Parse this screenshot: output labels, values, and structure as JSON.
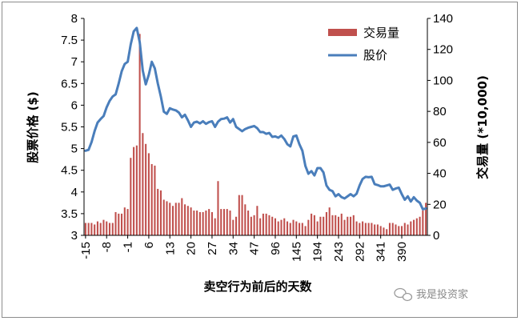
{
  "chart_data": {
    "type": "bar+line",
    "xlabel": "卖空行为前后的天数",
    "ylabel_left": "股票价格 ($)",
    "ylabel_right": "交易量 (*10,000)",
    "ylim_left": [
      3,
      8
    ],
    "ylim_right": [
      0,
      140
    ],
    "y_ticks_left": [
      "3",
      "3.5",
      "4",
      "4.5",
      "5",
      "5.5",
      "6",
      "6.5",
      "7",
      "7.5",
      "8"
    ],
    "y_ticks_right": [
      "0",
      "20",
      "40",
      "60",
      "80",
      "100",
      "120",
      "140"
    ],
    "x_ticks": [
      "-15",
      "-8",
      "-1",
      "6",
      "13",
      "20",
      "27",
      "34",
      "47",
      "96",
      "145",
      "194",
      "243",
      "292",
      "341",
      "390"
    ],
    "x_tick_index": [
      0,
      7,
      14,
      21,
      28,
      35,
      42,
      49,
      56,
      63,
      70,
      77,
      84,
      91,
      98,
      105
    ],
    "legend_position": "top-right",
    "series": [
      {
        "name": "交易量",
        "type": "bar",
        "axis": "right",
        "color": "#c0504d",
        "values": [
          8,
          8,
          8,
          7,
          9,
          8,
          10,
          9,
          8,
          8,
          15,
          14,
          14,
          18,
          17,
          50,
          57,
          58,
          130,
          66,
          59,
          53,
          46,
          45,
          30,
          29,
          23,
          22,
          21,
          19,
          21,
          21,
          24,
          20,
          19,
          18,
          16,
          16,
          15,
          15,
          16,
          17,
          15,
          11,
          35,
          17,
          17,
          17,
          16,
          10,
          12,
          26,
          26,
          20,
          16,
          12,
          13,
          19,
          11,
          14,
          14,
          13,
          12,
          11,
          9,
          10,
          11,
          9,
          8,
          10,
          9,
          8,
          8,
          6,
          10,
          14,
          13,
          9,
          12,
          12,
          15,
          18,
          13,
          13,
          12,
          14,
          10,
          12,
          12,
          13,
          9,
          8,
          9,
          8,
          8,
          8,
          7,
          7,
          6,
          5,
          4,
          8,
          8,
          7,
          6,
          6,
          8,
          7,
          9,
          10,
          11,
          12,
          16,
          21
        ]
      },
      {
        "name": "股价",
        "type": "line",
        "axis": "left",
        "color": "#4a7ebb",
        "values": [
          4.95,
          4.97,
          5.15,
          5.4,
          5.6,
          5.68,
          5.75,
          5.95,
          6.1,
          6.2,
          6.25,
          6.5,
          6.78,
          6.95,
          7.0,
          7.4,
          7.7,
          7.78,
          7.45,
          6.8,
          6.48,
          6.7,
          7.0,
          6.85,
          6.5,
          6.2,
          5.85,
          5.8,
          5.93,
          5.9,
          5.88,
          5.83,
          5.72,
          5.78,
          5.65,
          5.5,
          5.6,
          5.62,
          5.58,
          5.63,
          5.57,
          5.61,
          5.63,
          5.5,
          5.62,
          5.68,
          5.69,
          5.72,
          5.6,
          5.68,
          5.5,
          5.45,
          5.4,
          5.45,
          5.48,
          5.5,
          5.52,
          5.47,
          5.38,
          5.38,
          5.34,
          5.36,
          5.27,
          5.28,
          5.25,
          5.3,
          5.22,
          5.1,
          5.05,
          5.28,
          5.3,
          5.1,
          4.95,
          4.6,
          4.42,
          4.48,
          4.38,
          4.55,
          4.55,
          4.45,
          4.15,
          4.05,
          4.02,
          3.9,
          3.95,
          3.88,
          3.85,
          3.9,
          3.95,
          3.9,
          3.96,
          4.15,
          4.3,
          4.35,
          4.34,
          4.35,
          4.18,
          4.16,
          4.13,
          4.13,
          4.15,
          4.17,
          4.05,
          4.08,
          4.1,
          3.95,
          3.82,
          3.9,
          3.78,
          3.88,
          3.8,
          3.75,
          3.6,
          3.62
        ]
      }
    ]
  },
  "watermark": {
    "icon": "wechat-icon",
    "text": "我是投资家"
  }
}
